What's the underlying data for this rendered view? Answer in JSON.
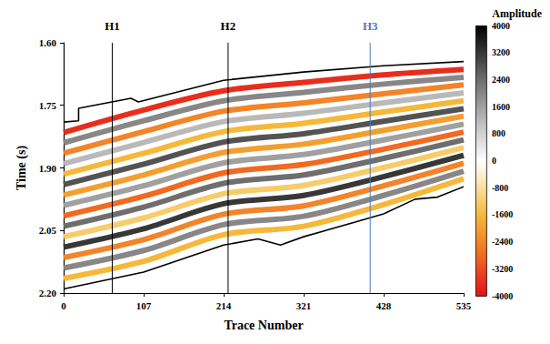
{
  "chart_data": {
    "type": "seismic",
    "xlabel": "Trace Number",
    "ylabel": "Time (s)",
    "xlim": [
      0,
      535
    ],
    "xticks": [
      0,
      107,
      214,
      321,
      428,
      535
    ],
    "ylim": [
      1.6,
      2.2
    ],
    "yticks": [
      {
        "value": 1.6,
        "label": "1.60"
      },
      {
        "value": 1.75,
        "label": "1.75"
      },
      {
        "value": 1.9,
        "label": "1.90"
      },
      {
        "value": 2.05,
        "label": "2.05"
      },
      {
        "value": 2.2,
        "label": "2.20"
      }
    ],
    "wells": [
      {
        "name": "H1",
        "x": 65,
        "color": "#000000"
      },
      {
        "name": "H2",
        "x": 220,
        "color": "#000000"
      },
      {
        "name": "H3",
        "x": 410,
        "color": "#4a7ab8"
      }
    ],
    "top_boundary": {
      "x": [
        0,
        20,
        20,
        90,
        100,
        214,
        321,
        428,
        535
      ],
      "values": [
        1.79,
        1.787,
        1.757,
        1.733,
        1.742,
        1.69,
        1.67,
        1.655,
        1.645
      ]
    },
    "bottom_boundary": {
      "x": [
        0,
        107,
        214,
        260,
        290,
        321,
        390,
        428,
        470,
        500,
        535
      ],
      "values": [
        2.19,
        2.15,
        2.085,
        2.07,
        2.085,
        2.065,
        2.03,
        2.01,
        1.975,
        1.97,
        1.945
      ]
    },
    "reflectors": {
      "x": [
        0,
        107,
        214,
        321,
        428,
        535
      ],
      "series": [
        {
          "amplitude": -3600,
          "values": [
            1.815,
            1.761,
            1.715,
            1.695,
            1.677,
            1.664
          ]
        },
        {
          "amplitude": 2000,
          "values": [
            1.84,
            1.787,
            1.739,
            1.719,
            1.699,
            1.683
          ]
        },
        {
          "amplitude": -2400,
          "values": [
            1.865,
            1.813,
            1.764,
            1.744,
            1.722,
            1.701
          ]
        },
        {
          "amplitude": 1200,
          "values": [
            1.89,
            1.839,
            1.789,
            1.769,
            1.744,
            1.72
          ]
        },
        {
          "amplitude": -1600,
          "values": [
            1.915,
            1.865,
            1.813,
            1.793,
            1.766,
            1.739
          ]
        },
        {
          "amplitude": 2800,
          "values": [
            1.94,
            1.891,
            1.838,
            1.818,
            1.788,
            1.758
          ]
        },
        {
          "amplitude": -2000,
          "values": [
            1.965,
            1.917,
            1.863,
            1.843,
            1.81,
            1.776
          ]
        },
        {
          "amplitude": 1600,
          "values": [
            1.99,
            1.943,
            1.888,
            1.868,
            1.833,
            1.795
          ]
        },
        {
          "amplitude": -2800,
          "values": [
            2.015,
            1.968,
            1.912,
            1.892,
            1.855,
            1.814
          ]
        },
        {
          "amplitude": 2400,
          "values": [
            2.04,
            1.994,
            1.937,
            1.917,
            1.877,
            1.833
          ]
        },
        {
          "amplitude": -1200,
          "values": [
            2.065,
            2.02,
            1.962,
            1.942,
            1.899,
            1.851
          ]
        },
        {
          "amplitude": 3200,
          "values": [
            2.09,
            2.046,
            1.986,
            1.966,
            1.921,
            1.87
          ]
        },
        {
          "amplitude": -2400,
          "values": [
            2.115,
            2.072,
            2.011,
            1.991,
            1.943,
            1.889
          ]
        },
        {
          "amplitude": 2000,
          "values": [
            2.14,
            2.098,
            2.036,
            2.016,
            1.966,
            1.908
          ]
        },
        {
          "amplitude": -1600,
          "values": [
            2.165,
            2.124,
            2.06,
            2.04,
            1.988,
            1.926
          ]
        }
      ]
    },
    "colorbar": {
      "title": "Amplitude",
      "range": [
        -4000,
        4000
      ],
      "ticks": [
        -4000,
        -3200,
        -2400,
        -1600,
        -800,
        0,
        800,
        1600,
        2400,
        3200,
        4000
      ]
    }
  }
}
